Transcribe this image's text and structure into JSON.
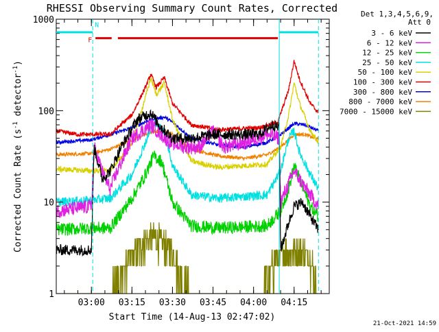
{
  "chart_data": {
    "type": "line",
    "title": "RHESSI Observing Summary Count Rates, Corrected",
    "xlabel": "Start Time (14-Aug-13 02:47:02)",
    "ylabel_main": "Corrected Count Rate (s",
    "ylabel_sup1": "-1",
    "ylabel_mid": " detector",
    "ylabel_sup2": "-1",
    "ylabel_end": ")",
    "y_scale": "log",
    "ylim": [
      1,
      1000
    ],
    "xlim_minutes": [
      0,
      101
    ],
    "x_tick_minutes": [
      13,
      28,
      43,
      58,
      73,
      88
    ],
    "x_tick_labels": [
      "03:00",
      "03:15",
      "03:30",
      "03:45",
      "04:00",
      "04:15"
    ],
    "y_tick_values": [
      1,
      10,
      100,
      1000
    ],
    "y_tick_labels": [
      "1",
      "10",
      "100",
      "1000"
    ],
    "legend_header": [
      "Det 1,3,4,5,6,9,",
      "Att 0"
    ],
    "legend_position": "right",
    "timestamp": "21-Oct-2021 14:59",
    "flags": {
      "saa_color": "#00e0e0",
      "flare_color": "#e00000",
      "F_label": "F",
      "N_label": "N",
      "saa_intervals": [
        [
          0,
          13.5
        ],
        [
          82.5,
          97
        ]
      ],
      "night_lines": [
        13.5,
        82.5,
        97
      ],
      "flare_intervals": [
        [
          14.5,
          20.5
        ],
        [
          22.8,
          82
        ]
      ]
    },
    "series": [
      {
        "name": "3 - 6 keV",
        "color": "#000000",
        "noise": 0.06,
        "points": [
          [
            0,
            3
          ],
          [
            13,
            3
          ],
          [
            14,
            40
          ],
          [
            17,
            18
          ],
          [
            20,
            22
          ],
          [
            24,
            40
          ],
          [
            30,
            80
          ],
          [
            35,
            95
          ],
          [
            38,
            70
          ],
          [
            43,
            50
          ],
          [
            50,
            50
          ],
          [
            58,
            55
          ],
          [
            65,
            55
          ],
          [
            75,
            55
          ],
          [
            80,
            70
          ],
          [
            82.5,
            65
          ],
          [
            83,
            3
          ],
          [
            86,
            6
          ],
          [
            88,
            9
          ],
          [
            91,
            10
          ],
          [
            94,
            7
          ],
          [
            97,
            5
          ]
        ]
      },
      {
        "name": "6 - 12 keV",
        "color": "#e020e0",
        "noise": 0.08,
        "points": [
          [
            0,
            8
          ],
          [
            13,
            9
          ],
          [
            14,
            40
          ],
          [
            18,
            18
          ],
          [
            20,
            14
          ],
          [
            22,
            20
          ],
          [
            28,
            50
          ],
          [
            35,
            70
          ],
          [
            42,
            45
          ],
          [
            48,
            40
          ],
          [
            53,
            40
          ],
          [
            58,
            60
          ],
          [
            62,
            40
          ],
          [
            70,
            45
          ],
          [
            78,
            55
          ],
          [
            82.5,
            50
          ],
          [
            83,
            10
          ],
          [
            88,
            22
          ],
          [
            91,
            16
          ],
          [
            94,
            12
          ],
          [
            97,
            9
          ]
        ]
      },
      {
        "name": "12 - 25 keV",
        "color": "#00d000",
        "noise": 0.07,
        "points": [
          [
            0,
            5
          ],
          [
            13,
            5.2
          ],
          [
            20,
            5.2
          ],
          [
            28,
            11
          ],
          [
            33,
            20
          ],
          [
            36,
            32
          ],
          [
            39,
            28
          ],
          [
            43,
            10
          ],
          [
            50,
            5.5
          ],
          [
            60,
            5.2
          ],
          [
            78,
            5.5
          ],
          [
            83,
            8
          ],
          [
            86,
            14
          ],
          [
            88,
            25
          ],
          [
            90,
            18
          ],
          [
            94,
            9
          ],
          [
            97,
            7
          ]
        ]
      },
      {
        "name": "25 - 50 keV",
        "color": "#00e0e0",
        "noise": 0.05,
        "points": [
          [
            0,
            10
          ],
          [
            13,
            10.5
          ],
          [
            20,
            11
          ],
          [
            28,
            20
          ],
          [
            33,
            45
          ],
          [
            36,
            75
          ],
          [
            40,
            60
          ],
          [
            43,
            25
          ],
          [
            50,
            12
          ],
          [
            60,
            11
          ],
          [
            78,
            12
          ],
          [
            83,
            22
          ],
          [
            86,
            50
          ],
          [
            88,
            60
          ],
          [
            90,
            35
          ],
          [
            94,
            20
          ],
          [
            97,
            14
          ]
        ]
      },
      {
        "name": "50 - 100 keV",
        "color": "#d8d000",
        "noise": 0.03,
        "points": [
          [
            0,
            23
          ],
          [
            13,
            22
          ],
          [
            20,
            22
          ],
          [
            28,
            45
          ],
          [
            33,
            140
          ],
          [
            35,
            230
          ],
          [
            37,
            150
          ],
          [
            40,
            200
          ],
          [
            43,
            80
          ],
          [
            50,
            28
          ],
          [
            60,
            24
          ],
          [
            78,
            26
          ],
          [
            83,
            40
          ],
          [
            86,
            90
          ],
          [
            88,
            200
          ],
          [
            90,
            120
          ],
          [
            94,
            60
          ],
          [
            97,
            45
          ]
        ]
      },
      {
        "name": "100 - 300 keV",
        "color": "#e00000",
        "noise": 0.025,
        "points": [
          [
            0,
            60
          ],
          [
            8,
            55
          ],
          [
            13,
            55
          ],
          [
            20,
            55
          ],
          [
            28,
            90
          ],
          [
            33,
            180
          ],
          [
            35,
            250
          ],
          [
            37,
            180
          ],
          [
            40,
            230
          ],
          [
            43,
            120
          ],
          [
            50,
            70
          ],
          [
            60,
            62
          ],
          [
            75,
            65
          ],
          [
            82,
            75
          ],
          [
            86,
            170
          ],
          [
            88,
            350
          ],
          [
            90,
            220
          ],
          [
            94,
            120
          ],
          [
            97,
            95
          ]
        ]
      },
      {
        "name": "300 - 800 keV",
        "color": "#0000e0",
        "noise": 0.02,
        "points": [
          [
            0,
            45
          ],
          [
            13,
            48
          ],
          [
            20,
            55
          ],
          [
            28,
            65
          ],
          [
            35,
            80
          ],
          [
            40,
            85
          ],
          [
            43,
            75
          ],
          [
            50,
            50
          ],
          [
            60,
            42
          ],
          [
            70,
            40
          ],
          [
            78,
            45
          ],
          [
            83,
            55
          ],
          [
            88,
            72
          ],
          [
            92,
            70
          ],
          [
            97,
            60
          ]
        ]
      },
      {
        "name": "800 - 7000 keV",
        "color": "#f08000",
        "noise": 0.02,
        "points": [
          [
            0,
            33
          ],
          [
            13,
            34
          ],
          [
            20,
            38
          ],
          [
            28,
            48
          ],
          [
            35,
            58
          ],
          [
            40,
            60
          ],
          [
            43,
            55
          ],
          [
            50,
            38
          ],
          [
            60,
            32
          ],
          [
            70,
            30
          ],
          [
            78,
            33
          ],
          [
            83,
            40
          ],
          [
            88,
            55
          ],
          [
            92,
            55
          ],
          [
            97,
            48
          ]
        ]
      },
      {
        "name": "7000 - 15000 keV",
        "color": "#808000",
        "noise": 0.0,
        "points": [
          [
            0,
            1
          ],
          [
            13,
            1
          ],
          [
            20,
            1
          ],
          [
            26,
            2
          ],
          [
            30,
            3
          ],
          [
            33,
            4
          ],
          [
            38,
            4
          ],
          [
            42,
            3
          ],
          [
            45,
            2
          ],
          [
            50,
            1
          ],
          [
            75,
            1
          ],
          [
            78,
            1.5
          ],
          [
            82,
            2.5
          ],
          [
            86,
            3
          ],
          [
            90,
            3
          ],
          [
            94,
            2.5
          ],
          [
            97,
            1
          ]
        ]
      }
    ]
  }
}
